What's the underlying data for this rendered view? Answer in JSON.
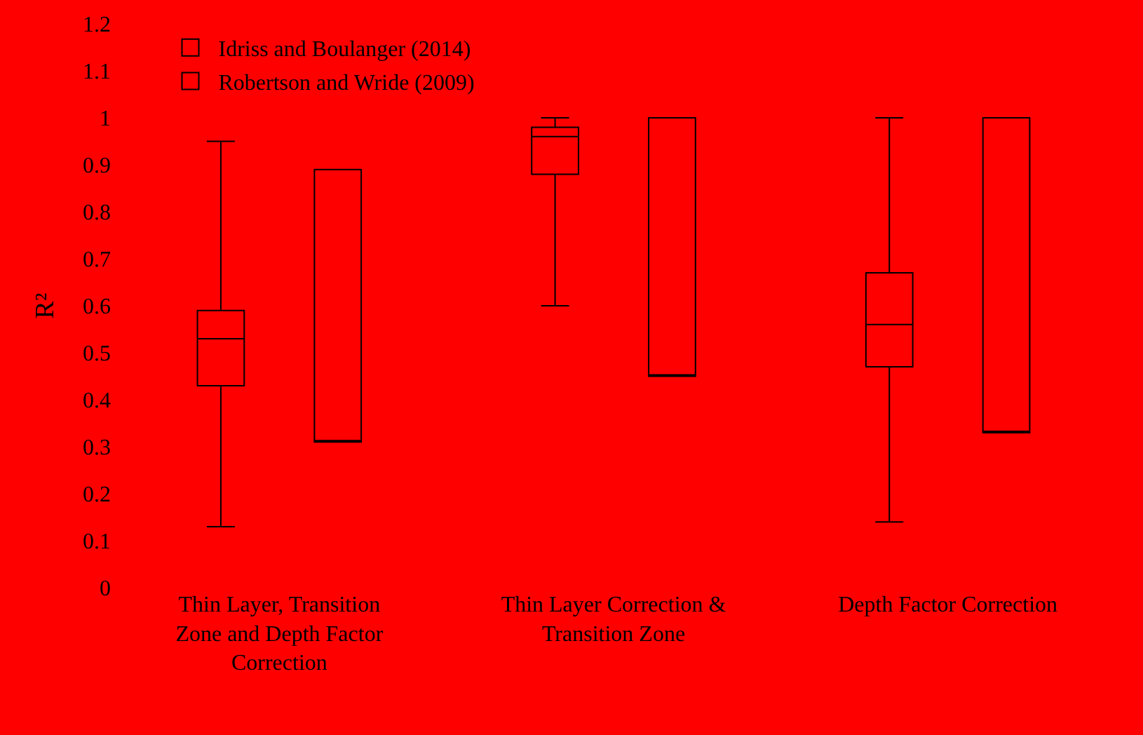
{
  "chart_data": {
    "type": "box",
    "ylabel": "R²",
    "categories": [
      "Thin Layer, Transition Zone and Depth Factor Correction",
      "Thin Layer Correction & Transition Zone",
      "Depth Factor Correction"
    ],
    "series": [
      {
        "name": "Idriss and Boulanger (2014)",
        "color": "#000000",
        "boxes": [
          {
            "low": 0.13,
            "q1": 0.43,
            "median": 0.53,
            "q3": 0.59,
            "high": 0.95
          },
          {
            "low": 0.6,
            "q1": 0.88,
            "median": 0.96,
            "q3": 0.98,
            "high": 1.0
          },
          {
            "low": 0.14,
            "q1": 0.47,
            "median": 0.56,
            "q3": 0.67,
            "high": 1.0
          }
        ]
      },
      {
        "name": "Robertson and Wride (2009)",
        "color": "#000000",
        "boxes": [
          {
            "low": 0.31,
            "q1": 0.31,
            "median": 0.31,
            "q3": 0.89,
            "high": 0.89
          },
          {
            "low": 0.45,
            "q1": 0.45,
            "median": 0.45,
            "q3": 1.0,
            "high": 1.0
          },
          {
            "low": 0.33,
            "q1": 0.33,
            "median": 0.33,
            "q3": 1.0,
            "high": 1.0
          }
        ]
      }
    ],
    "ylim": [
      0,
      1.2
    ],
    "yticks": [
      0,
      0.1,
      0.2,
      0.3,
      0.4,
      0.5,
      0.6,
      0.7,
      0.8,
      0.9,
      1,
      1.1,
      1.2
    ],
    "grid": false,
    "legend": "top left"
  }
}
